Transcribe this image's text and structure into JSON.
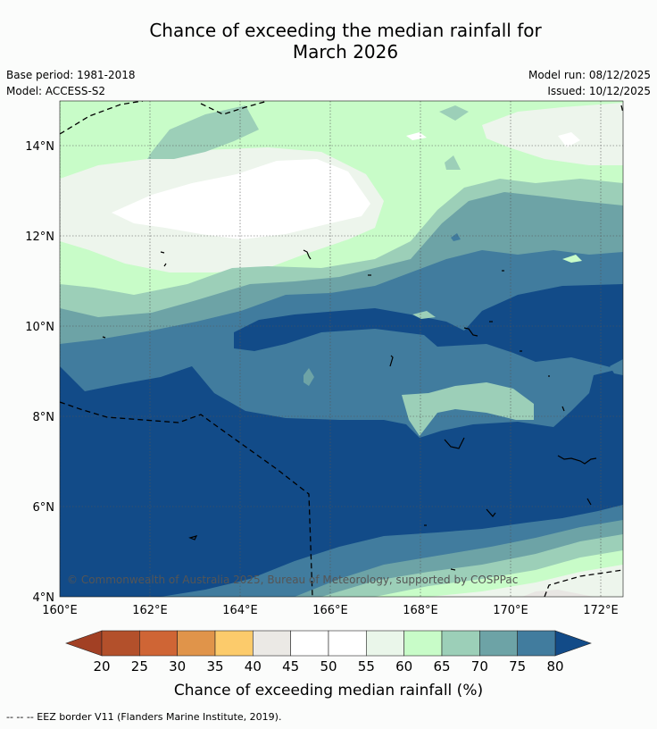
{
  "title_line1": "Chance of exceeding the median rainfall for",
  "title_line2": "March 2026",
  "meta": {
    "base_period": "Base period: 1981-2018",
    "model": "Model: ACCESS-S2",
    "model_run": "Model run: 08/12/2025",
    "issued": "Issued: 10/12/2025"
  },
  "axes": {
    "lon_labels": [
      "160°E",
      "162°E",
      "164°E",
      "166°E",
      "168°E",
      "170°E",
      "172°E"
    ],
    "lat_labels": [
      "14°N",
      "12°N",
      "10°N",
      "8°N",
      "6°N",
      "4°N"
    ]
  },
  "copyright": "© Commonwealth of Australia 2025, Bureau of Meteorology, supported by COSPPac",
  "colorbar": {
    "title": "Chance of exceeding median rainfall (%)",
    "labels": [
      "20",
      "25",
      "30",
      "35",
      "40",
      "45",
      "50",
      "55",
      "60",
      "65",
      "70",
      "75",
      "80"
    ],
    "colors": [
      "#b3502b",
      "#cf6535",
      "#e0944a",
      "#fccb6b",
      "#ebe9e5",
      "#ffffff",
      "#ffffff",
      "#eaf6ea",
      "#c8fcc8",
      "#9ccfb8",
      "#6da3a6",
      "#417c9e"
    ],
    "under_color": "#a24024",
    "over_color": "#124b88"
  },
  "legend_colors": {
    "c45": "#ffffff",
    "c55": "#edf5ec",
    "c60": "#c8fcc8",
    "c65": "#9ccfb8",
    "c70": "#6da3a6",
    "c75": "#417c9e",
    "c80": "#124b88",
    "c40": "#e8e6e3"
  },
  "footnote": "--  --  -- EEZ border V11 (Flanders Marine Institute, 2019)."
}
